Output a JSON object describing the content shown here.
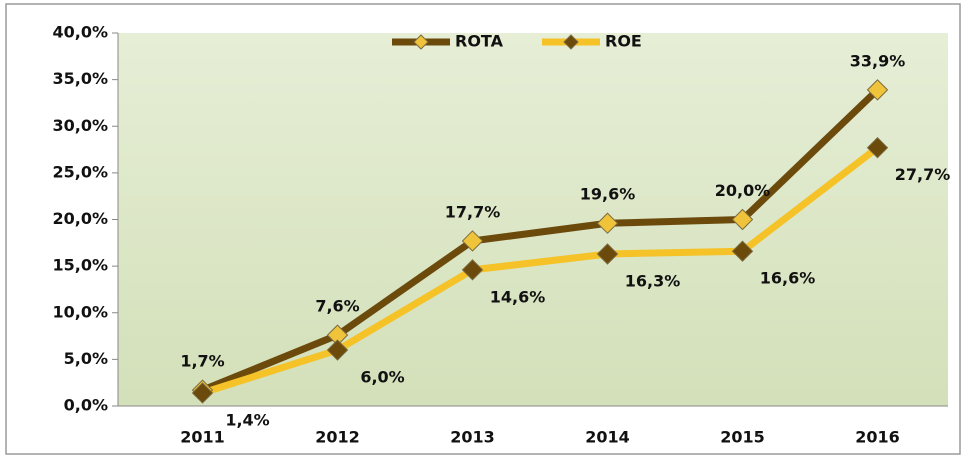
{
  "chart_data": {
    "type": "line",
    "categories": [
      "2011",
      "2012",
      "2013",
      "2014",
      "2015",
      "2016"
    ],
    "series": [
      {
        "name": "ROTA",
        "color": "#6b4a0c",
        "marker_color": "#f0c43a",
        "values": [
          1.7,
          7.6,
          17.7,
          19.6,
          20.0,
          33.9
        ],
        "value_labels": [
          "1,7%",
          "7,6%",
          "17,7%",
          "19,6%",
          "20,0%",
          "33,9%"
        ]
      },
      {
        "name": "ROE",
        "color": "#f5c228",
        "marker_color": "#6b4a0c",
        "values": [
          1.4,
          6.0,
          14.6,
          16.3,
          16.6,
          27.7
        ],
        "value_labels": [
          "1,4%",
          "6,0%",
          "14,6%",
          "16,3%",
          "16,6%",
          "27,7%"
        ]
      }
    ],
    "ylim": [
      0,
      40
    ],
    "yticks": [
      {
        "value": 0,
        "label": "0,0%"
      },
      {
        "value": 5,
        "label": "5,0%"
      },
      {
        "value": 10,
        "label": "10,0%"
      },
      {
        "value": 15,
        "label": "15,0%"
      },
      {
        "value": 20,
        "label": "20,0%"
      },
      {
        "value": 25,
        "label": "25,0%"
      },
      {
        "value": 30,
        "label": "30,0%"
      },
      {
        "value": 35,
        "label": "35,0%"
      },
      {
        "value": 40,
        "label": "40,0%"
      }
    ],
    "legend": "top"
  }
}
